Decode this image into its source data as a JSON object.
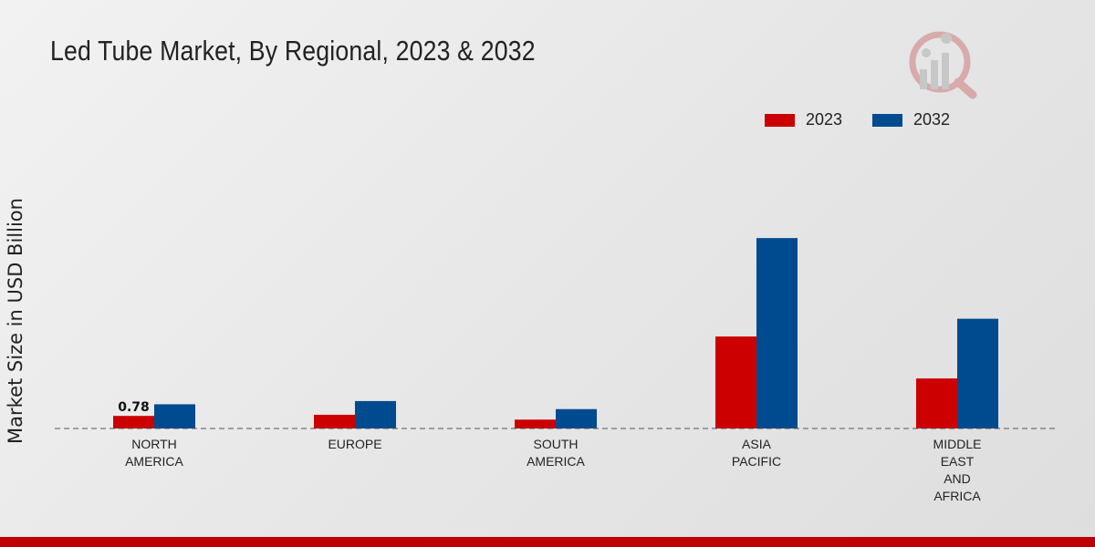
{
  "chart_data": {
    "type": "bar",
    "title": "Led Tube Market, By Regional, 2023 & 2032",
    "xlabel": "",
    "ylabel": "Market Size in USD Billion",
    "categories": [
      [
        "NORTH",
        "AMERICA"
      ],
      [
        "EUROPE"
      ],
      [
        "SOUTH",
        "AMERICA"
      ],
      [
        "ASIA",
        "PACIFIC"
      ],
      [
        "MIDDLE",
        "EAST",
        "AND",
        "AFRICA"
      ]
    ],
    "series": [
      {
        "name": "2023",
        "color": "#cc0000",
        "values": [
          0.78,
          0.85,
          0.55,
          5.7,
          3.1
        ]
      },
      {
        "name": "2032",
        "color": "#004a8f",
        "values": [
          1.5,
          1.7,
          1.2,
          11.8,
          6.8
        ]
      }
    ],
    "data_labels": [
      {
        "series": 0,
        "index": 0,
        "text": "0.78"
      }
    ],
    "ylim": [
      0,
      20
    ],
    "grid": false,
    "legend_position": "top-right"
  }
}
